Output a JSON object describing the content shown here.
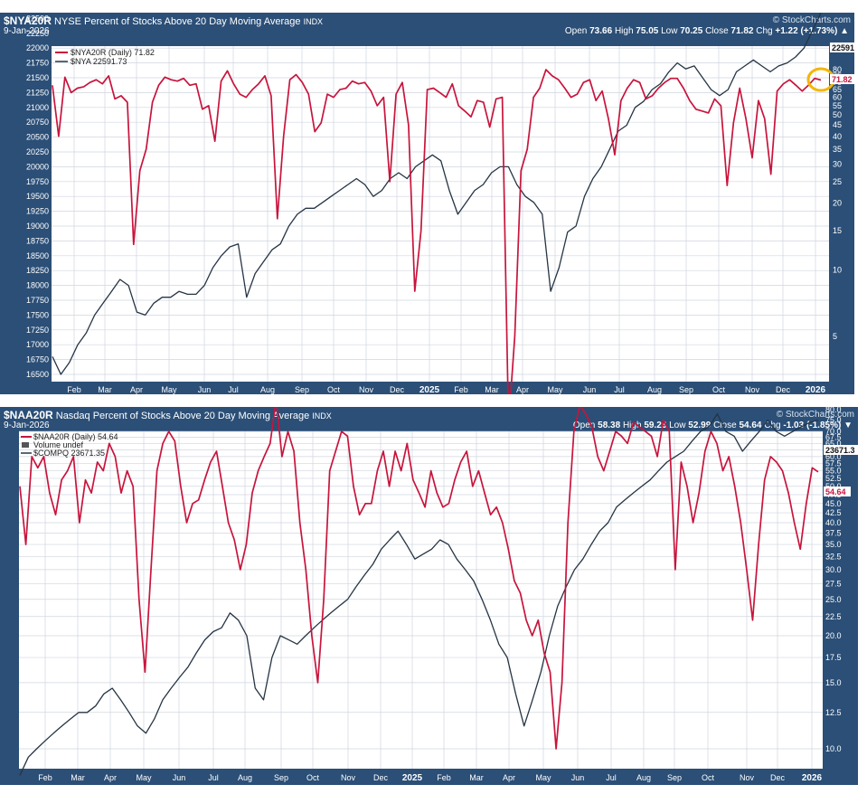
{
  "colors": {
    "panel": "#2b4f77",
    "breadth": "#c8143c",
    "index": "#253444",
    "highlight": "#f2b705"
  },
  "chart_data": [
    {
      "type": "line",
      "symbol": "$NYA20R",
      "title": "NYSE Percent of Stocks Above 20 Day Moving Average",
      "exchange": "INDX",
      "date": "9-Jan-2026",
      "brand": "© StockCharts.com",
      "ohlc": {
        "open_label": "Open",
        "open": "73.66",
        "high_label": "High",
        "high": "75.05",
        "low_label": "Low",
        "low": "70.25",
        "close_label": "Close",
        "close": "71.82",
        "chg_label": "Chg",
        "chg": "+1.22 (+1.73%)",
        "chg_arrow": "▲"
      },
      "legend": [
        "$NYA20R (Daily) 71.82",
        "$NYA 22591.73"
      ],
      "left_axis": {
        "ticks": [
          "22500",
          "22250",
          "22000",
          "21750",
          "21500",
          "21250",
          "21000",
          "20750",
          "20500",
          "20250",
          "20000",
          "19750",
          "19500",
          "19250",
          "19000",
          "18750",
          "18500",
          "18250",
          "18000",
          "17750",
          "17500",
          "17250",
          "17000",
          "16750",
          "16500"
        ],
        "range": [
          16500,
          22500
        ]
      },
      "right_axis": {
        "ticks": [
          "80",
          "75",
          "70",
          "65",
          "60",
          "55",
          "50",
          "45",
          "40",
          "35",
          "30",
          "25",
          "20",
          "15",
          "10",
          "5"
        ],
        "scale": "log"
      },
      "x_ticks": [
        "Feb",
        "Mar",
        "Apr",
        "May",
        "Jun",
        "Jul",
        "Aug",
        "Sep",
        "Oct",
        "Nov",
        "Dec",
        "2025",
        "Feb",
        "Mar",
        "Apr",
        "May",
        "Jun",
        "Jul",
        "Aug",
        "Sep",
        "Oct",
        "Nov",
        "Dec",
        "2026"
      ],
      "last_tags": {
        "index": "22591",
        "breadth": "71.82"
      },
      "series": [
        {
          "name": "$NYA20R",
          "axis": "right",
          "values": [
            68,
            40,
            74,
            63,
            66,
            67,
            70,
            72,
            69,
            75,
            59,
            61,
            57,
            13,
            28,
            35,
            57,
            68,
            74,
            72,
            71,
            73,
            68,
            69,
            53,
            55,
            38,
            71,
            79,
            69,
            62,
            60,
            65,
            69,
            75,
            61,
            17,
            40,
            72,
            76,
            70,
            62,
            42,
            46,
            62,
            60,
            65,
            66,
            71,
            69,
            70,
            64,
            55,
            60,
            25,
            62,
            70,
            45,
            8,
            15,
            65,
            66,
            63,
            60,
            69,
            55,
            52,
            49,
            58,
            57,
            44,
            59,
            60,
            2,
            5,
            28,
            35,
            60,
            66,
            80,
            75,
            72,
            66,
            60,
            62,
            70,
            72,
            58,
            64,
            48,
            33,
            58,
            66,
            72,
            70,
            59,
            61,
            66,
            70,
            73,
            73,
            66,
            58,
            53,
            52,
            51,
            59,
            55,
            24,
            46,
            66,
            48,
            32,
            58,
            48,
            27,
            64,
            69,
            72,
            68,
            64,
            68,
            73,
            71.82
          ]
        },
        {
          "name": "$NYA",
          "axis": "left",
          "values": [
            16800,
            16500,
            16700,
            17000,
            17200,
            17500,
            17700,
            17900,
            18100,
            18000,
            17550,
            17500,
            17700,
            17800,
            17800,
            17900,
            17850,
            17850,
            18000,
            18300,
            18500,
            18650,
            18700,
            17800,
            18200,
            18400,
            18600,
            18700,
            19000,
            19200,
            19300,
            19300,
            19400,
            19500,
            19600,
            19700,
            19800,
            19700,
            19500,
            19600,
            19800,
            19900,
            19800,
            20000,
            20100,
            20200,
            20100,
            19600,
            19200,
            19400,
            19600,
            19700,
            19900,
            20000,
            20000,
            19700,
            19500,
            19400,
            19200,
            17900,
            18300,
            18900,
            19000,
            19500,
            19800,
            20000,
            20300,
            20600,
            20700,
            21000,
            21100,
            21300,
            21400,
            21600,
            21750,
            21650,
            21700,
            21500,
            21300,
            21200,
            21300,
            21600,
            21700,
            21800,
            21700,
            21600,
            21700,
            21750,
            21850,
            22000,
            22300,
            22591.73
          ]
        }
      ]
    },
    {
      "type": "line",
      "symbol": "$NAA20R",
      "title": "Nasdaq Percent of Stocks Above 20 Day Moving Average",
      "exchange": "INDX",
      "date": "9-Jan-2026",
      "brand": "© StockCharts.com",
      "ohlc": {
        "open_label": "Open",
        "open": "58.38",
        "high_label": "High",
        "high": "59.26",
        "low_label": "Low",
        "low": "52.99",
        "close_label": "Close",
        "close": "54.64",
        "chg_label": "Chg",
        "chg": "-1.03 (-1.85%)",
        "chg_arrow": "▼"
      },
      "legend": [
        "$NAA20R (Daily) 54.64",
        "Volume undef",
        "$COMPQ 23671.35"
      ],
      "right_axis": {
        "ticks": [
          "80.0",
          "75.0",
          "70.0",
          "67.5",
          "65.0",
          "62.5",
          "60.0",
          "57.5",
          "55.0",
          "52.5",
          "50.0",
          "47.5",
          "45.0",
          "42.5",
          "40.0",
          "37.5",
          "35.0",
          "32.5",
          "30.0",
          "27.5",
          "25.0",
          "22.5",
          "20.0",
          "17.5",
          "15.0",
          "12.5",
          "10.0"
        ],
        "scale": "log"
      },
      "x_ticks": [
        "Feb",
        "Mar",
        "Apr",
        "May",
        "Jun",
        "Jul",
        "Aug",
        "Sep",
        "Oct",
        "Nov",
        "Dec",
        "2025",
        "Feb",
        "Mar",
        "Apr",
        "May",
        "Jun",
        "Jul",
        "Aug",
        "Sep",
        "Oct",
        "Nov",
        "Dec",
        "2026"
      ],
      "last_tags": {
        "index": "23671.3",
        "breadth": "54.64"
      },
      "series": [
        {
          "name": "$NAA20R",
          "axis": "right",
          "values": [
            50,
            35,
            60,
            56,
            60,
            48,
            42,
            52,
            55,
            60,
            40,
            52,
            48,
            58,
            55,
            65,
            60,
            48,
            55,
            50,
            25,
            16,
            30,
            55,
            65,
            70,
            66,
            50,
            40,
            45,
            46,
            52,
            58,
            62,
            50,
            40,
            36,
            30,
            35,
            48,
            55,
            60,
            65,
            85,
            60,
            70,
            62,
            40,
            30,
            20,
            15,
            25,
            55,
            62,
            70,
            68,
            50,
            42,
            45,
            45,
            55,
            62,
            50,
            62,
            55,
            65,
            52,
            48,
            44,
            55,
            48,
            44,
            45,
            52,
            58,
            62,
            50,
            55,
            48,
            42,
            44,
            40,
            34,
            28,
            26,
            22,
            20,
            22,
            18,
            16,
            10,
            15,
            40,
            70,
            82,
            78,
            72,
            60,
            55,
            62,
            70,
            68,
            65,
            74,
            72,
            70,
            68,
            60,
            75,
            70,
            30,
            58,
            50,
            40,
            48,
            62,
            70,
            65,
            55,
            60,
            50,
            40,
            30,
            22,
            35,
            52,
            60,
            58,
            55,
            48,
            40,
            34,
            45,
            56,
            54.64
          ]
        },
        {
          "name": "$COMPQ",
          "axis": "right",
          "values": [
            8.5,
            9.5,
            10.0,
            10.5,
            11.0,
            11.5,
            12.0,
            12.5,
            12.5,
            13.0,
            14.0,
            14.5,
            13.5,
            12.5,
            11.5,
            11.0,
            12.0,
            13.5,
            14.5,
            15.5,
            16.5,
            18.0,
            19.5,
            20.5,
            21.0,
            23.0,
            22.0,
            20.0,
            14.5,
            13.5,
            17.5,
            20.0,
            19.5,
            19.0,
            20.0,
            21.0,
            22.0,
            23.0,
            24.0,
            25.0,
            27.0,
            29.0,
            31.0,
            34.0,
            36.0,
            38.0,
            35.0,
            32.0,
            33.0,
            34.0,
            36.0,
            35.0,
            32.0,
            30.0,
            28.0,
            25.0,
            22.0,
            19.0,
            17.5,
            14.0,
            11.5,
            13.5,
            16.0,
            20.0,
            24.0,
            27.0,
            30.0,
            32.0,
            35.0,
            38.0,
            40.0,
            44.0,
            46.0,
            48.0,
            50.0,
            52.0,
            55.0,
            58.0,
            60.0,
            62.0,
            66.0,
            70.0,
            72.0,
            78.0,
            70.0,
            68.0,
            62.0,
            66.0,
            70.0,
            75.0,
            70.0,
            68.0,
            70.0,
            72.0,
            74.0,
            75.0
          ]
        }
      ]
    }
  ]
}
